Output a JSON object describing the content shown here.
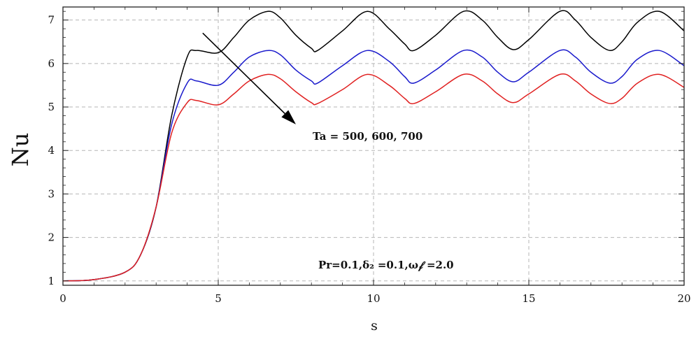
{
  "chart_data": {
    "type": "line",
    "xlabel": "s",
    "ylabel": "Nu",
    "xlim": [
      0,
      20
    ],
    "ylim": [
      0.9,
      7.3
    ],
    "x_ticks": [
      0,
      5,
      10,
      15,
      20
    ],
    "x_tick_labels": [
      "0",
      "5",
      "10",
      "15",
      "20"
    ],
    "y_ticks": [
      1,
      2,
      3,
      4,
      5,
      6,
      7
    ],
    "y_tick_labels": [
      "1",
      "2",
      "3",
      "4",
      "5",
      "6",
      "7"
    ],
    "grid": true,
    "grid_style": "dashed",
    "x": [
      0,
      1,
      2,
      2.5,
      3,
      3.5,
      4,
      4.3,
      5,
      5.5,
      6,
      6.6,
      7,
      7.5,
      8,
      8.2,
      9,
      9.8,
      10.5,
      11,
      11.3,
      12,
      12.9,
      13.5,
      14,
      14.5,
      15,
      16,
      16.5,
      17,
      17.6,
      18,
      18.5,
      19.2,
      20
    ],
    "series": [
      {
        "color": "#000000",
        "values": [
          1.0,
          1.03,
          1.2,
          1.6,
          2.7,
          4.8,
          6.15,
          6.3,
          6.25,
          6.6,
          7.0,
          7.2,
          7.05,
          6.65,
          6.35,
          6.3,
          6.75,
          7.2,
          6.8,
          6.45,
          6.3,
          6.65,
          7.2,
          7.0,
          6.6,
          6.32,
          6.55,
          7.2,
          7.0,
          6.6,
          6.3,
          6.5,
          6.95,
          7.2,
          6.75
        ]
      },
      {
        "color": "#1a1acc",
        "values": [
          1.0,
          1.03,
          1.2,
          1.6,
          2.7,
          4.6,
          5.55,
          5.6,
          5.5,
          5.8,
          6.15,
          6.3,
          6.2,
          5.85,
          5.6,
          5.55,
          5.95,
          6.3,
          6.05,
          5.7,
          5.55,
          5.85,
          6.3,
          6.15,
          5.8,
          5.58,
          5.8,
          6.3,
          6.15,
          5.8,
          5.55,
          5.7,
          6.1,
          6.3,
          5.95
        ]
      },
      {
        "color": "#e02020",
        "values": [
          1.0,
          1.03,
          1.2,
          1.6,
          2.7,
          4.4,
          5.1,
          5.15,
          5.05,
          5.3,
          5.6,
          5.75,
          5.65,
          5.35,
          5.1,
          5.08,
          5.4,
          5.75,
          5.5,
          5.2,
          5.08,
          5.35,
          5.75,
          5.6,
          5.3,
          5.1,
          5.3,
          5.75,
          5.6,
          5.3,
          5.08,
          5.2,
          5.55,
          5.75,
          5.45
        ]
      }
    ],
    "annotations": {
      "arrow_text": "Ta = 500, 600, 700",
      "arrow_from": [
        4.5,
        6.7
      ],
      "arrow_to": [
        7.5,
        4.6
      ],
      "params_text": "Pr=0.1,δ₂ =0.1,ω𝒻 =2.0"
    }
  }
}
